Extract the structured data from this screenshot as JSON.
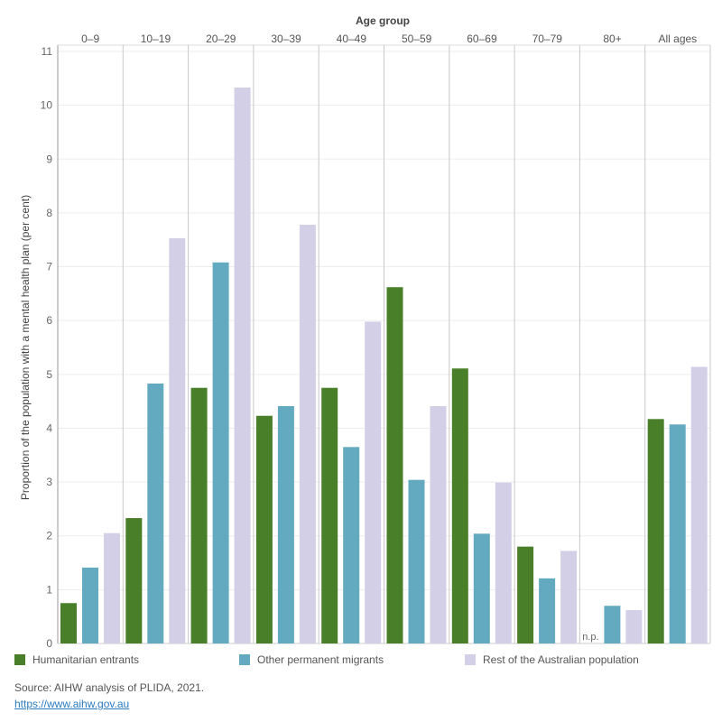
{
  "chart_data": {
    "type": "bar",
    "title": "",
    "xlabel": "Age group",
    "ylabel": "Proportion of the population with a mental health plan (per cent)",
    "ylim": [
      0,
      11
    ],
    "yticks": [
      0,
      1,
      2,
      3,
      4,
      5,
      6,
      7,
      8,
      9,
      10,
      11
    ],
    "categories": [
      "0–9",
      "10–19",
      "20–29",
      "30–39",
      "40–49",
      "50–59",
      "60–69",
      "70–79",
      "80+",
      "All ages"
    ],
    "series": [
      {
        "name": "Humanitarian entrants",
        "color": "#4a7f2a",
        "values": [
          0.75,
          2.33,
          4.75,
          4.23,
          4.75,
          6.62,
          5.11,
          1.8,
          null,
          4.17
        ]
      },
      {
        "name": "Other permanent migrants",
        "color": "#63aac0",
        "values": [
          1.41,
          4.83,
          7.08,
          4.41,
          3.65,
          3.04,
          2.04,
          1.21,
          0.7,
          4.07
        ]
      },
      {
        "name": "Rest of the Australian population",
        "color": "#d3cfe6",
        "values": [
          2.05,
          7.53,
          10.33,
          7.78,
          5.98,
          4.41,
          2.99,
          1.72,
          0.62,
          5.14
        ]
      }
    ],
    "missing_label": "n.p.",
    "grid": true,
    "legend_position": "bottom"
  },
  "source": {
    "text": "Source: AIHW analysis of PLIDA, 2021.",
    "link": "https://www.aihw.gov.au"
  }
}
